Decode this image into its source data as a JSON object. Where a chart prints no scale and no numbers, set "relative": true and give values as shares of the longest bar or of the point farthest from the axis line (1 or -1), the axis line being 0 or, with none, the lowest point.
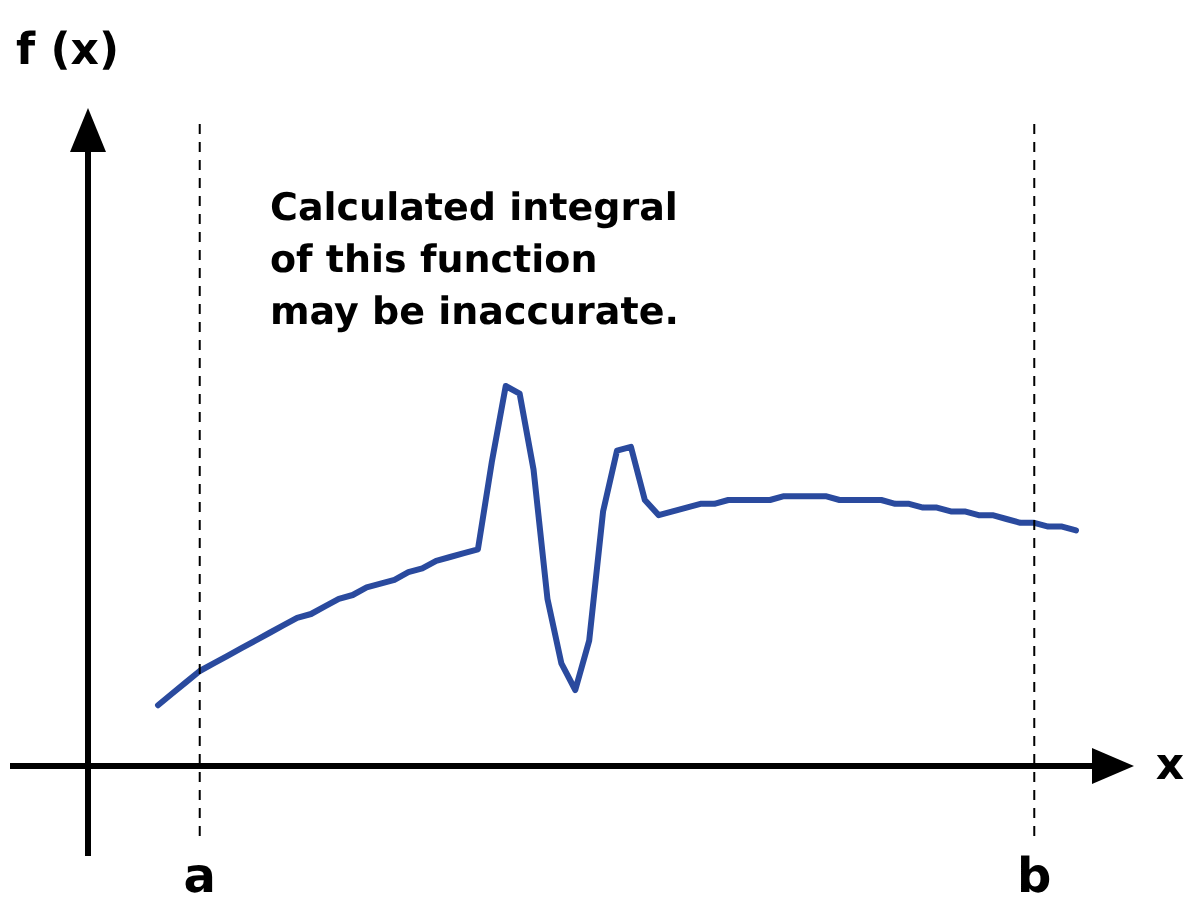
{
  "chart_data": {
    "type": "line",
    "relative": true,
    "xlabel": "x",
    "tick_labels": "x",
    "marker": "none",
    "line_style": "solid",
    "annotations": [
      "f (x)",
      "Calculated integral\nof this function\nmay be inaccurate."
    ],
    "ref_lines": [
      {
        "axis": "x",
        "value": "a",
        "line_style": "dashed",
        "color": "#000000"
      },
      {
        "axis": "x",
        "value": "b",
        "line_style": "dashed",
        "color": "#000000"
      }
    ],
    "categories": [
      null,
      null,
      null,
      "a",
      null,
      null,
      null,
      null,
      null,
      null,
      null,
      null,
      null,
      null,
      null,
      null,
      null,
      null,
      null,
      null,
      null,
      null,
      null,
      null,
      null,
      null,
      null,
      null,
      null,
      null,
      null,
      null,
      null,
      null,
      null,
      null,
      null,
      null,
      null,
      null,
      null,
      null,
      null,
      null,
      null,
      null,
      null,
      null,
      null,
      null,
      null,
      null,
      null,
      null,
      null,
      null,
      null,
      null,
      null,
      null,
      null,
      null,
      null,
      "b",
      null,
      null,
      null
    ],
    "series": [
      {
        "color": "#2a4a9e",
        "values": [
          0.16,
          0.19,
          0.22,
          0.25,
          0.27,
          0.29,
          0.31,
          0.33,
          0.35,
          0.37,
          0.39,
          0.4,
          0.42,
          0.44,
          0.45,
          0.47,
          0.48,
          0.49,
          0.51,
          0.52,
          0.54,
          0.55,
          0.56,
          0.57,
          0.8,
          1,
          0.98,
          0.78,
          0.44,
          0.27,
          0.2,
          0.33,
          0.67,
          0.83,
          0.84,
          0.7,
          0.66,
          0.67,
          0.68,
          0.69,
          0.69,
          0.7,
          0.7,
          0.7,
          0.7,
          0.71,
          0.71,
          0.71,
          0.71,
          0.7,
          0.7,
          0.7,
          0.7,
          0.69,
          0.69,
          0.68,
          0.68,
          0.67,
          0.67,
          0.66,
          0.66,
          0.65,
          0.64,
          0.64,
          0.63,
          0.63,
          0.62
        ]
      }
    ]
  }
}
